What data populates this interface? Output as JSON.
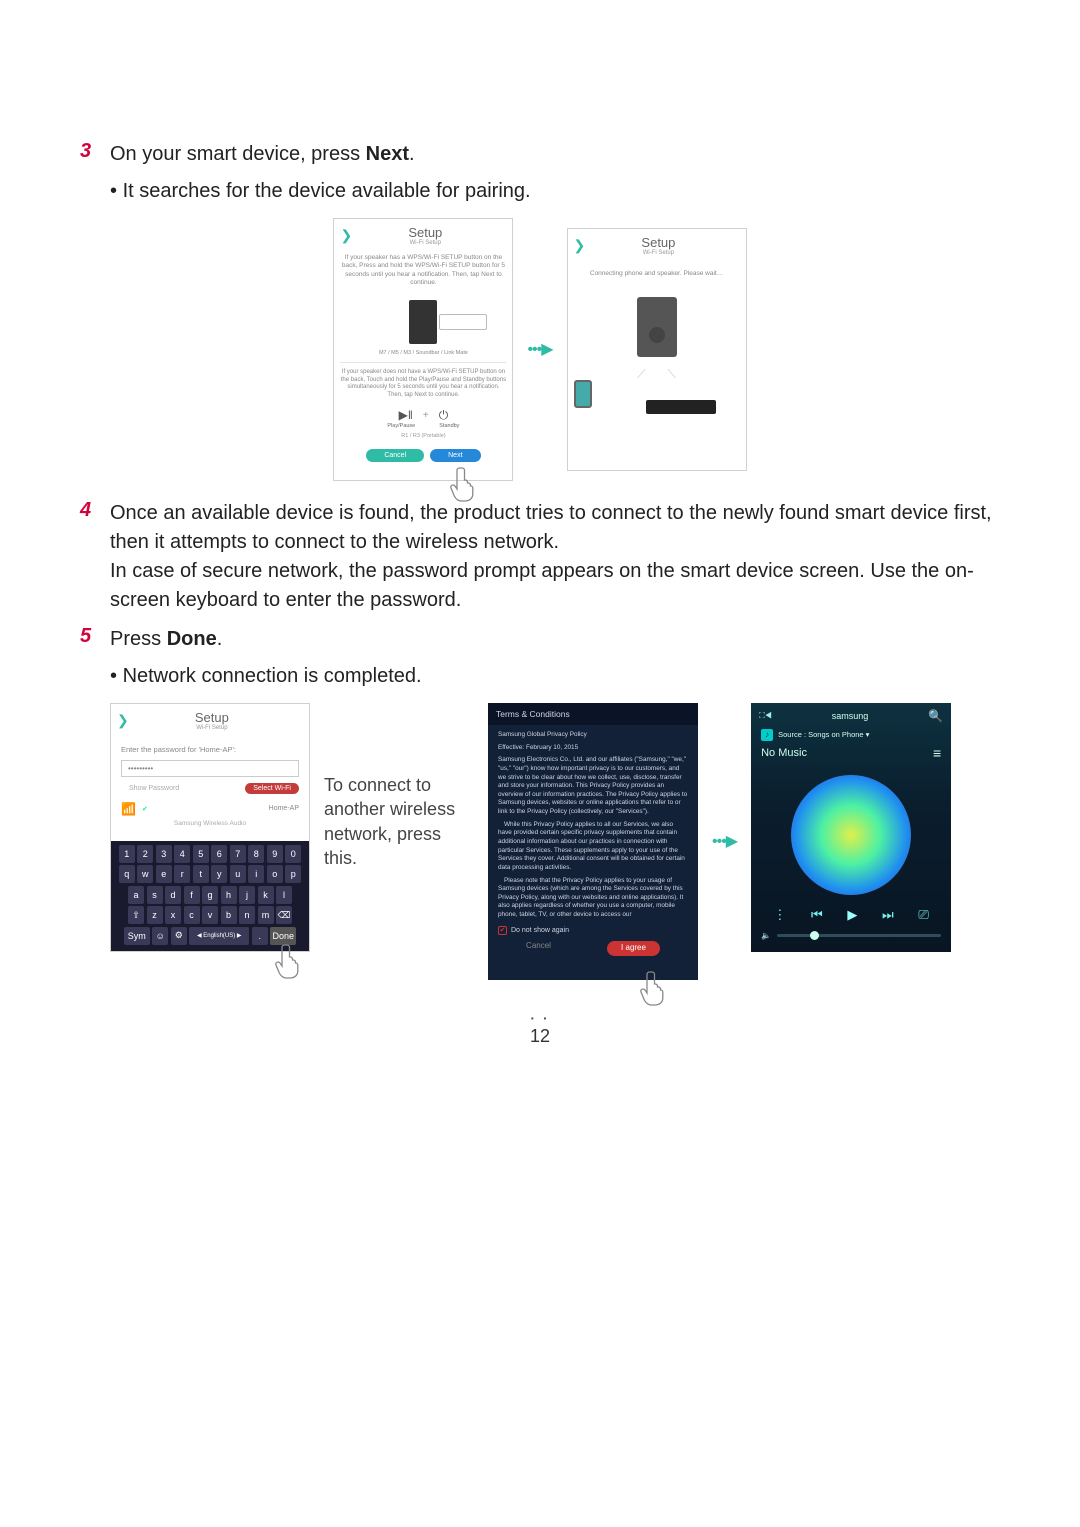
{
  "step3": {
    "num": "3",
    "text_a": "On your smart device, press ",
    "bold": "Next",
    "text_b": "."
  },
  "step3_bullet": "It searches for the device available for pairing.",
  "setup1": {
    "title": "Setup",
    "subtitle": "Wi-Fi Setup",
    "instr1": "If your speaker has a WPS/Wi-Fi SETUP button on the back, Press and hold the WPS/Wi-Fi SETUP button for 5 seconds until you hear a notification. Then, tap Next to continue.",
    "model1": "M7 / M5 / M3 / Soundbar / Link Mate",
    "instr2": "If your speaker does not have a WPS/Wi-Fi SETUP button on the back, Touch and hold the Play/Pause and Standby buttons simultaneously for 5 seconds until you hear a notification. Then, tap Next to continue.",
    "play": "Play/Pause",
    "standby": "Standby",
    "model2": "R1 / R3 (Portable)",
    "cancel": "Cancel",
    "next": "Next",
    "btn_cancel_bg": "#2fbca6",
    "btn_next_bg": "#2688d8"
  },
  "setup2": {
    "title": "Setup",
    "subtitle": "Wi-Fi Setup",
    "instr": "Connecting phone and speaker. Please wait…"
  },
  "step4": {
    "num": "4",
    "para": "Once an available device is found, the product tries to connect to the newly found smart device first, then it attempts to connect to the wireless network.\nIn case of secure network, the password prompt appears on the smart device screen. Use the on-screen keyboard to enter the password."
  },
  "step5": {
    "num": "5",
    "text_a": "Press ",
    "bold": "Done",
    "text_b": "."
  },
  "step5_bullet": "Network connection is completed.",
  "pw_screen": {
    "title": "Setup",
    "subtitle": "Wi-Fi Setup",
    "instr": "Enter the password for 'Home-AP':",
    "value": "•••••••••",
    "show_pw": "Show Password",
    "select_wifi": "Select Wi-Fi",
    "select_wifi_bg": "#c33b3b",
    "home_ap": "Home-AP",
    "swa": "Samsung Wireless Audio",
    "krow1": [
      "1",
      "2",
      "3",
      "4",
      "5",
      "6",
      "7",
      "8",
      "9",
      "0"
    ],
    "krow2": [
      "q",
      "w",
      "e",
      "r",
      "t",
      "y",
      "u",
      "i",
      "o",
      "p"
    ],
    "krow3": [
      "a",
      "s",
      "d",
      "f",
      "g",
      "h",
      "j",
      "k",
      "l"
    ],
    "krow4": [
      "⇧",
      "z",
      "x",
      "c",
      "v",
      "b",
      "n",
      "m",
      "⌫"
    ],
    "sym": "Sym",
    "lang": "◀ English(US) ▶",
    "done": "Done"
  },
  "callout": "To connect to another wireless network, press this.",
  "terms": {
    "header": "Terms & Conditions",
    "title": "Samsung Global Privacy Policy",
    "eff": "Effective: February 10, 2015",
    "p1": "Samsung Electronics Co., Ltd. and our affiliates (\"Samsung,\" \"we,\" \"us,\" \"our\") know how important privacy is to our customers, and we strive to be clear about how we collect, use, disclose, transfer and store your information. This Privacy Policy provides an overview of our information practices. The Privacy Policy applies to Samsung devices, websites or online applications that refer to or link to the Privacy Policy (collectively, our \"Services\").",
    "p2": "While this Privacy Policy applies to all our Services, we also have provided certain specific privacy supplements that contain additional information about our practices in connection with particular Services. These supplements apply to your use of the Services they cover. Additional consent will be obtained for certain data processing activities.",
    "p3": "Please note that the Privacy Policy applies to your usage of Samsung devices (which are among the Services covered by this Privacy Policy, along with our websites and online applications). It also applies regardless of whether you use a computer, mobile phone, tablet, TV, or other device to access our",
    "dna": "Do not show again",
    "cancel": "Cancel",
    "agree": "I agree"
  },
  "player": {
    "brand": "samsung",
    "source_label": "Source : Songs on Phone ▾",
    "nomusic": "No Music"
  },
  "page_number": "12"
}
